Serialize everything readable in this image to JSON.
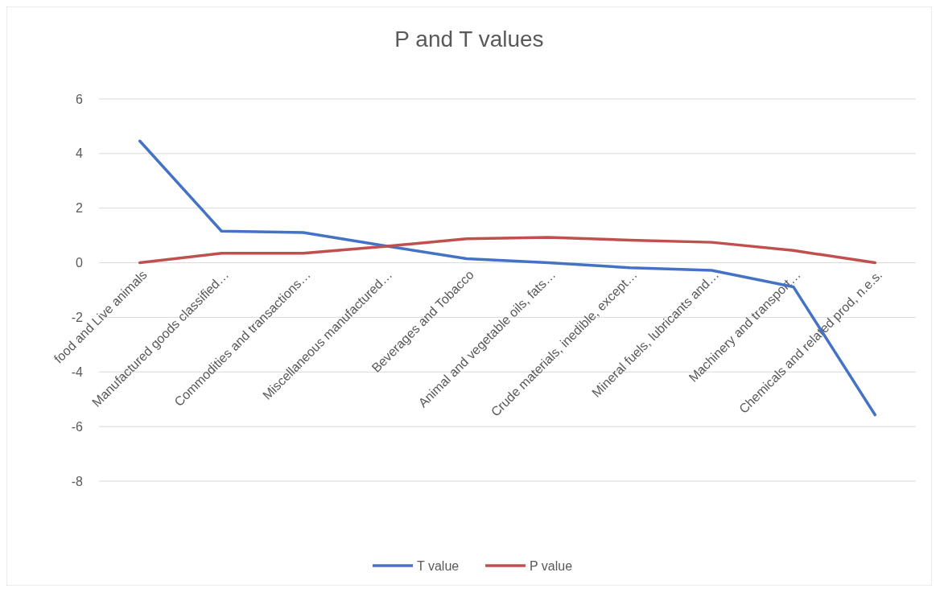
{
  "chart_data": {
    "type": "line",
    "title": "P and T values",
    "categories": [
      "food and Live animals",
      "Manufactured goods classified…",
      "Commodities and transactions…",
      "Miscellaneous manufactured…",
      "Beverages and Tobacco",
      "Animal and vegetable oils, fats…",
      "Crude materials, inedible, except…",
      "Mineral fuels, lubricants and…",
      "Machinery and transport…",
      "Chemicals and related prod, n.e.s."
    ],
    "series": [
      {
        "name": "T value",
        "color": "#4472c4",
        "values": [
          4.46,
          1.16,
          1.11,
          0.62,
          0.15,
          0.0,
          -0.18,
          -0.28,
          -0.88,
          -5.57
        ]
      },
      {
        "name": "P value",
        "color": "#c0504d",
        "values": [
          0.0,
          0.35,
          0.35,
          0.6,
          0.88,
          0.93,
          0.83,
          0.75,
          0.45,
          0.0
        ]
      }
    ],
    "ylim": [
      -8,
      6
    ],
    "yticks": [
      -8,
      -6,
      -4,
      -2,
      0,
      2,
      4,
      6
    ],
    "grid": "y",
    "legend": "bottom",
    "marker": "none",
    "line_style": "solid"
  }
}
